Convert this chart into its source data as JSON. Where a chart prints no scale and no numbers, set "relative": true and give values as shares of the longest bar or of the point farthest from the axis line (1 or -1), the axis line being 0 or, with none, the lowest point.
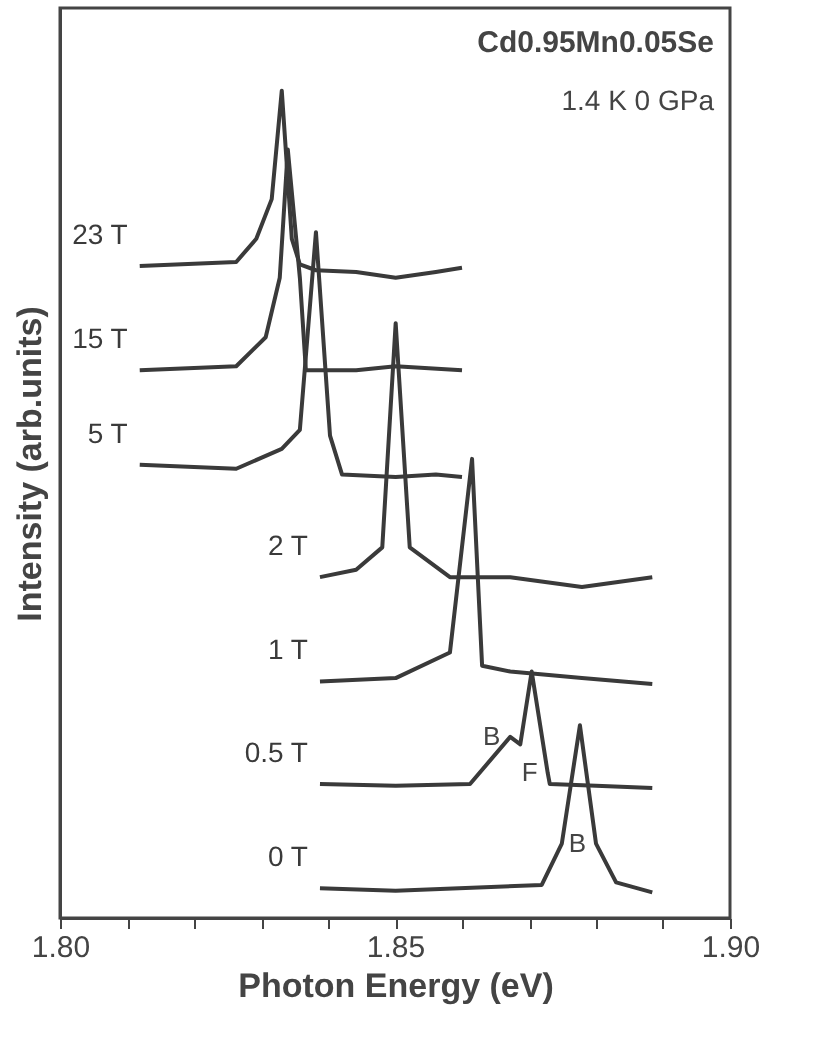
{
  "chart_data": {
    "type": "line",
    "relative": true,
    "xlabel": "Photon Energy (eV)",
    "ylabel": "Intensity (arb.units)",
    "xlim": [
      1.8,
      1.9
    ],
    "xticks": [
      {
        "value": 1.8,
        "label": "1.80"
      },
      {
        "value": 1.81,
        "label": null
      },
      {
        "value": 1.82,
        "label": null
      },
      {
        "value": 1.83,
        "label": null
      },
      {
        "value": 1.84,
        "label": null
      },
      {
        "value": 1.85,
        "label": "1.85"
      },
      {
        "value": 1.86,
        "label": null
      },
      {
        "value": 1.87,
        "label": null
      },
      {
        "value": 1.88,
        "label": null
      },
      {
        "value": 1.89,
        "label": null
      },
      {
        "value": 1.9,
        "label": "1.90"
      }
    ],
    "grid": false,
    "legend": false,
    "marker": "none",
    "line_style": "solid",
    "series": [
      {
        "name": "23 T",
        "color": "#3a3a3a",
        "x": [
          1.8119,
          1.8263,
          1.8293,
          1.8316,
          1.8331,
          1.8346,
          1.8358,
          1.8382,
          1.8442,
          1.8501,
          1.8561,
          1.86
        ],
        "values": [
          0.788,
          0.793,
          0.821,
          0.869,
          1.0,
          0.821,
          0.79,
          0.783,
          0.781,
          0.774,
          0.781,
          0.786
        ]
      },
      {
        "name": "15 T",
        "color": "#3a3a3a",
        "x": [
          1.8119,
          1.8263,
          1.8307,
          1.8328,
          1.834,
          1.8358,
          1.8367,
          1.8442,
          1.8501,
          1.86
        ],
        "values": [
          0.662,
          0.667,
          0.702,
          0.774,
          0.929,
          0.774,
          0.662,
          0.662,
          0.667,
          0.662
        ]
      },
      {
        "name": "5 T",
        "color": "#3a3a3a",
        "x": [
          1.8119,
          1.8263,
          1.8331,
          1.8358,
          1.8382,
          1.8403,
          1.8421,
          1.8501,
          1.8561,
          1.86
        ],
        "values": [
          0.548,
          0.543,
          0.567,
          0.59,
          0.829,
          0.583,
          0.536,
          0.533,
          0.536,
          0.533
        ]
      },
      {
        "name": "2 T",
        "color": "#3a3a3a",
        "x": [
          1.8388,
          1.8442,
          1.8481,
          1.8501,
          1.8522,
          1.8582,
          1.8672,
          1.8779,
          1.8884
        ],
        "values": [
          0.412,
          0.421,
          0.448,
          0.719,
          0.448,
          0.412,
          0.412,
          0.4,
          0.412
        ]
      },
      {
        "name": "1 T",
        "color": "#3a3a3a",
        "x": [
          1.8388,
          1.8501,
          1.8582,
          1.8615,
          1.863,
          1.8672,
          1.8779,
          1.8884
        ],
        "values": [
          0.286,
          0.29,
          0.321,
          0.555,
          0.305,
          0.298,
          0.29,
          0.283
        ]
      },
      {
        "name": "0.5 T",
        "color": "#3a3a3a",
        "x": [
          1.8388,
          1.8501,
          1.8612,
          1.8672,
          1.8687,
          1.8704,
          1.8728,
          1.8731,
          1.88,
          1.8884
        ],
        "values": [
          0.162,
          0.16,
          0.162,
          0.219,
          0.21,
          0.298,
          0.175,
          0.162,
          0.16,
          0.157
        ]
      },
      {
        "name": "0 T",
        "color": "#3a3a3a",
        "x": [
          1.8388,
          1.8501,
          1.8719,
          1.8749,
          1.8776,
          1.88,
          1.883,
          1.8884
        ],
        "values": [
          0.036,
          0.033,
          0.04,
          0.09,
          0.233,
          0.09,
          0.043,
          0.031
        ]
      }
    ],
    "annotations": [
      "Cd0.95Mn0.05Se",
      "1.4 K  0 GPa",
      {
        "text": "B",
        "x": 1.8672,
        "y": 0.219
      },
      {
        "text": "F",
        "x": 1.8728,
        "y": 0.175
      },
      {
        "text": "B",
        "x": 1.88,
        "y": 0.09
      }
    ]
  }
}
